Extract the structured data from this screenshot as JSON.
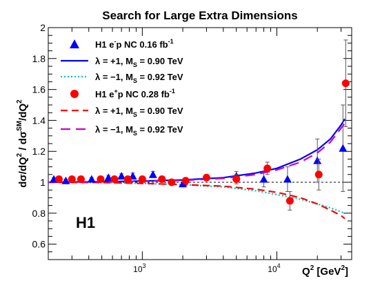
{
  "chart_data": {
    "type": "scatter",
    "title": "Search for Large Extra Dimensions",
    "xlabel": "Q² [GeV²]",
    "ylabel": "dσ/dQ² / dσSM/dQ²",
    "x_scale": "log",
    "xlim": [
      200,
      36000
    ],
    "ylim": [
      0.5,
      2.0
    ],
    "x_tick_labels": [
      {
        "value": 1000,
        "base": "10",
        "exp": "3"
      },
      {
        "value": 10000,
        "base": "10",
        "exp": "4"
      }
    ],
    "y_ticks": [
      0.6,
      0.8,
      1,
      1.2,
      1.4,
      1.6,
      1.8,
      2
    ],
    "y_tick_labels": [
      "0.6",
      "0.8",
      "1",
      "1.2",
      "1.4",
      "1.6",
      "1.8",
      "2"
    ],
    "reference_line": 1,
    "experiment_label": "H1",
    "legend_position": "top-left",
    "series": [
      {
        "name": "H1 e⁻p NC 0.16 fb⁻¹",
        "legend": {
          "main": "H1 e",
          "sup1": "-",
          "mid": "p NC 0.16 fb",
          "sup2": "-1"
        },
        "kind": "points",
        "marker": "triangle",
        "color": "#0000ff",
        "points": [
          {
            "x": 220,
            "y": 1.02,
            "err": 0.01
          },
          {
            "x": 270,
            "y": 1.01,
            "err": 0.01
          },
          {
            "x": 420,
            "y": 1.02,
            "err": 0.01
          },
          {
            "x": 560,
            "y": 1.03,
            "err": 0.015
          },
          {
            "x": 700,
            "y": 1.04,
            "err": 0.015
          },
          {
            "x": 850,
            "y": 1.04,
            "err": 0.02
          },
          {
            "x": 1200,
            "y": 1.05,
            "err": 0.02
          },
          {
            "x": 2000,
            "y": 0.99,
            "err": 0.02
          },
          {
            "x": 5000,
            "y": 1.04,
            "err": 0.03
          },
          {
            "x": 8000,
            "y": 1.02,
            "err": 0.05
          },
          {
            "x": 12000,
            "y": 1.02,
            "err": 0.08
          },
          {
            "x": 20000,
            "y": 1.14,
            "err": 0.14
          },
          {
            "x": 31000,
            "y": 1.22,
            "err": 0.28
          }
        ]
      },
      {
        "name": "λ = +1,   MS = 0.90 TeV",
        "legend": {
          "lam": "λ = +1,   M",
          "sub": "S",
          "rest": " = 0.90 TeV"
        },
        "kind": "curve",
        "style": "solid",
        "color": "#0000ff",
        "points": [
          {
            "x": 200,
            "y": 1.0
          },
          {
            "x": 500,
            "y": 1.004
          },
          {
            "x": 1000,
            "y": 1.008
          },
          {
            "x": 2000,
            "y": 1.015
          },
          {
            "x": 4000,
            "y": 1.03
          },
          {
            "x": 7000,
            "y": 1.06
          },
          {
            "x": 10000,
            "y": 1.09
          },
          {
            "x": 15000,
            "y": 1.15
          },
          {
            "x": 20000,
            "y": 1.21
          },
          {
            "x": 25000,
            "y": 1.28
          },
          {
            "x": 30000,
            "y": 1.37
          },
          {
            "x": 32000,
            "y": 1.41
          }
        ]
      },
      {
        "name": "λ = −1,   MS = 0.92 TeV",
        "legend": {
          "lam": "λ = −1,   M",
          "sub": "S",
          "rest": " = 0.92 TeV"
        },
        "kind": "curve",
        "style": "dotted",
        "color": "#00c0c0",
        "points": [
          {
            "x": 200,
            "y": 1.0
          },
          {
            "x": 500,
            "y": 0.998
          },
          {
            "x": 1000,
            "y": 0.992
          },
          {
            "x": 2000,
            "y": 0.985
          },
          {
            "x": 4000,
            "y": 0.97
          },
          {
            "x": 7000,
            "y": 0.945
          },
          {
            "x": 10000,
            "y": 0.92
          },
          {
            "x": 15000,
            "y": 0.89
          },
          {
            "x": 20000,
            "y": 0.86
          },
          {
            "x": 25000,
            "y": 0.835
          },
          {
            "x": 30000,
            "y": 0.81
          },
          {
            "x": 32000,
            "y": 0.8
          }
        ]
      },
      {
        "name": "H1 e⁺p NC 0.28 fb⁻¹",
        "legend": {
          "main": "H1 e",
          "sup1": "+",
          "mid": "p NC 0.28 fb",
          "sup2": "-1"
        },
        "kind": "points",
        "marker": "circle",
        "color": "#ff0000",
        "points": [
          {
            "x": 240,
            "y": 1.02,
            "err": 0.01
          },
          {
            "x": 300,
            "y": 1.02,
            "err": 0.01
          },
          {
            "x": 350,
            "y": 1.02,
            "err": 0.01
          },
          {
            "x": 490,
            "y": 1.02,
            "err": 0.01
          },
          {
            "x": 620,
            "y": 1.02,
            "err": 0.01
          },
          {
            "x": 780,
            "y": 1.02,
            "err": 0.015
          },
          {
            "x": 1000,
            "y": 1.02,
            "err": 0.015
          },
          {
            "x": 1400,
            "y": 1.02,
            "err": 0.015
          },
          {
            "x": 1650,
            "y": 1.0,
            "err": 0.015
          },
          {
            "x": 2100,
            "y": 1.01,
            "err": 0.02
          },
          {
            "x": 3000,
            "y": 1.03,
            "err": 0.02
          },
          {
            "x": 5000,
            "y": 1.02,
            "err": 0.03
          },
          {
            "x": 8500,
            "y": 1.09,
            "err": 0.04
          },
          {
            "x": 12500,
            "y": 0.88,
            "err": 0.06
          },
          {
            "x": 20500,
            "y": 1.05,
            "err": 0.1
          },
          {
            "x": 32500,
            "y": 1.64,
            "err": 0.28
          }
        ]
      },
      {
        "name": "λ = +1,   MS = 0.90 TeV",
        "legend": {
          "lam": "λ = +1,   M",
          "sub": "S",
          "rest": " = 0.90 TeV"
        },
        "kind": "curve",
        "style": "dashed",
        "color": "#ff0000",
        "points": [
          {
            "x": 200,
            "y": 1.0
          },
          {
            "x": 500,
            "y": 0.998
          },
          {
            "x": 1000,
            "y": 0.993
          },
          {
            "x": 2000,
            "y": 0.985
          },
          {
            "x": 4000,
            "y": 0.975
          },
          {
            "x": 7000,
            "y": 0.955
          },
          {
            "x": 10000,
            "y": 0.935
          },
          {
            "x": 15000,
            "y": 0.9
          },
          {
            "x": 20000,
            "y": 0.86
          },
          {
            "x": 25000,
            "y": 0.82
          },
          {
            "x": 30000,
            "y": 0.785
          },
          {
            "x": 32000,
            "y": 0.765
          }
        ]
      },
      {
        "name": "λ = −1,   MS = 0.92 TeV",
        "legend": {
          "lam": "λ = −1,   M",
          "sub": "S",
          "rest": " = 0.92 TeV"
        },
        "kind": "curve",
        "style": "longdash",
        "color": "#cc00cc",
        "points": [
          {
            "x": 200,
            "y": 1.0
          },
          {
            "x": 500,
            "y": 1.003
          },
          {
            "x": 1000,
            "y": 1.006
          },
          {
            "x": 2000,
            "y": 1.012
          },
          {
            "x": 4000,
            "y": 1.025
          },
          {
            "x": 7000,
            "y": 1.05
          },
          {
            "x": 10000,
            "y": 1.08
          },
          {
            "x": 15000,
            "y": 1.13
          },
          {
            "x": 20000,
            "y": 1.19
          },
          {
            "x": 25000,
            "y": 1.26
          },
          {
            "x": 30000,
            "y": 1.35
          },
          {
            "x": 32000,
            "y": 1.38
          }
        ]
      }
    ]
  }
}
